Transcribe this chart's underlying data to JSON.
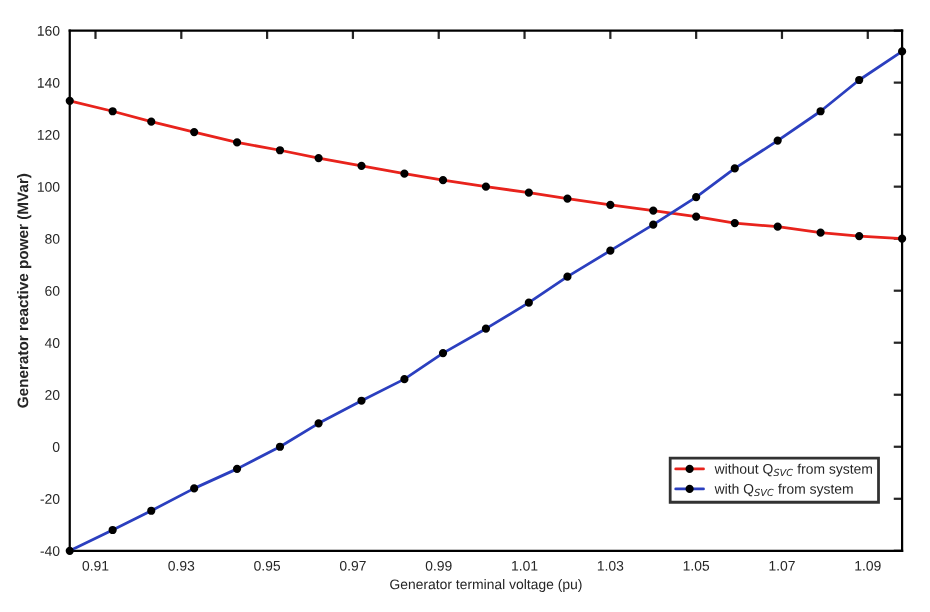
{
  "chart_data": {
    "type": "line",
    "xlabel": "Generator terminal voltage (pu)",
    "ylabel": "Generator reactive power (MVar)",
    "x": [
      0.904,
      0.914,
      0.923,
      0.933,
      0.943,
      0.953,
      0.962,
      0.972,
      0.982,
      0.991,
      1.001,
      1.011,
      1.02,
      1.03,
      1.04,
      1.05,
      1.059,
      1.069,
      1.079,
      1.088,
      1.098
    ],
    "series": [
      {
        "name": "without Q$_{SVC}$ from system",
        "color": "#e8231c",
        "values": [
          133,
          129,
          125,
          121,
          117,
          114,
          111,
          108,
          105,
          102.5,
          100,
          97.7,
          95.4,
          93,
          90.8,
          88.5,
          86,
          84.6,
          82.3,
          81,
          80
        ]
      },
      {
        "name": "with Q$_{SVC}$ from system",
        "color": "#2b3fbf",
        "values": [
          -40,
          -32,
          -24.6,
          -16,
          -8.5,
          0,
          9,
          17.7,
          26,
          36,
          45.4,
          55.4,
          65.4,
          75.4,
          85.4,
          96,
          107,
          117.7,
          129,
          141,
          152
        ]
      }
    ],
    "xlim": [
      0.904,
      1.098
    ],
    "xticks": [
      0.91,
      0.93,
      0.95,
      0.97,
      0.99,
      1.01,
      1.03,
      1.05,
      1.07,
      1.09
    ],
    "ylim": [
      -40,
      160
    ],
    "yticks": [
      -40,
      -20,
      0,
      20,
      40,
      60,
      80,
      100,
      120,
      140,
      160
    ],
    "grid": false,
    "legend": "bottom right",
    "marker": "circle",
    "line_style": "solid"
  }
}
